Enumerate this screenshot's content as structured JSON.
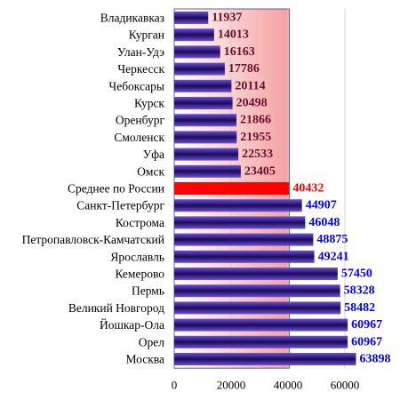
{
  "chart_data": {
    "type": "bar",
    "orientation": "horizontal",
    "categories": [
      "Владикавказ",
      "Курган",
      "Улан-Удэ",
      "Черкесск",
      "Чебоксары",
      "Курск",
      "Оренбург",
      "Смоленск",
      "Уфа",
      "Омск",
      "Среднее по России",
      "Санкт-Петербург",
      "Кострома",
      "Петропавловск-Камчатский",
      "Ярославль",
      "Кемерово",
      "Пермь",
      "Великий Новгород",
      "Йошкар-Ола",
      "Орел",
      "Москва"
    ],
    "values": [
      11937,
      14013,
      16163,
      17786,
      20114,
      20498,
      21866,
      21955,
      22533,
      23405,
      40432,
      44907,
      46048,
      48875,
      49241,
      57450,
      58328,
      58482,
      60967,
      60967,
      63898
    ],
    "highlight_category": "Среднее по России",
    "title": "",
    "xlabel": "",
    "ylabel": "",
    "xlim": [
      0,
      70000
    ],
    "xticks": [
      0,
      20000,
      40000,
      60000
    ],
    "grid": "vertical",
    "legend": "none",
    "colors": {
      "bar_gradient_light": "#6b52d6",
      "bar_gradient_dark": "#1c0a5a",
      "highlight_bar": "#ff0000",
      "label_below_average": "#6b0e2e",
      "label_above_average": "#0000ff",
      "label_highlight": "#ff0000",
      "below_average_region": "#f4a0a0",
      "gridline": "#d0d0d0"
    }
  }
}
